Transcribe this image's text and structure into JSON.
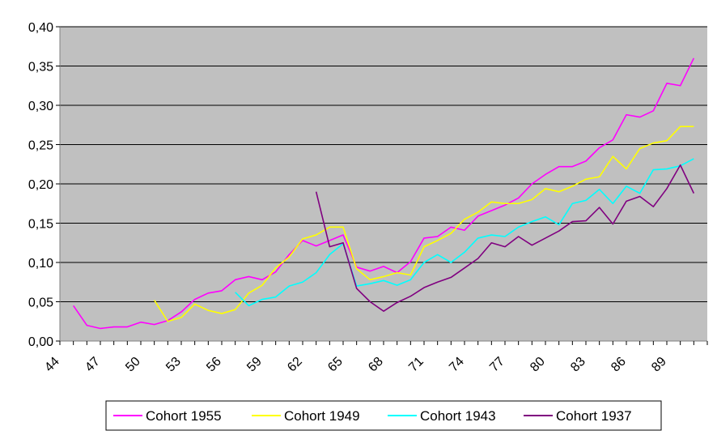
{
  "chart_data": {
    "type": "line",
    "title": "",
    "xlabel": "",
    "ylabel": "",
    "x": [
      45,
      46,
      47,
      48,
      49,
      50,
      51,
      52,
      53,
      54,
      55,
      56,
      57,
      58,
      59,
      60,
      61,
      62,
      63,
      64,
      65,
      66,
      67,
      68,
      69,
      70,
      71,
      72,
      73,
      74,
      75,
      76,
      77,
      78,
      79,
      80,
      81,
      82,
      83,
      84,
      85,
      86,
      87,
      88,
      89,
      90,
      91
    ],
    "xlim": [
      44,
      92
    ],
    "x_tick_labels": [
      "44",
      "47",
      "50",
      "53",
      "56",
      "59",
      "62",
      "65",
      "68",
      "71",
      "74",
      "77",
      "80",
      "83",
      "86",
      "89"
    ],
    "x_tick_values": [
      44,
      47,
      50,
      53,
      56,
      59,
      62,
      65,
      68,
      71,
      74,
      77,
      80,
      83,
      86,
      89
    ],
    "ylim": [
      0,
      0.4
    ],
    "y_tick_labels": [
      "0,00",
      "0,05",
      "0,10",
      "0,15",
      "0,20",
      "0,25",
      "0,30",
      "0,35",
      "0,40"
    ],
    "y_tick_values": [
      0,
      0.05,
      0.1,
      0.15,
      0.2,
      0.25,
      0.3,
      0.35,
      0.4
    ],
    "grid": "horizontal",
    "legend_position": "bottom",
    "plot_background": "#c0c0c0",
    "series": [
      {
        "name": "Cohort 1955",
        "color": "#ff00ff",
        "values": [
          0.045,
          0.02,
          0.016,
          0.018,
          0.018,
          0.024,
          0.021,
          0.026,
          0.037,
          0.053,
          0.061,
          0.064,
          0.078,
          0.082,
          0.078,
          0.088,
          0.11,
          0.128,
          0.121,
          0.128,
          0.135,
          0.094,
          0.089,
          0.095,
          0.087,
          0.101,
          0.131,
          0.133,
          0.145,
          0.141,
          0.159,
          0.166,
          0.173,
          0.182,
          0.2,
          0.212,
          0.222,
          0.222,
          0.229,
          0.246,
          0.256,
          0.288,
          0.285,
          0.293,
          0.328,
          0.325,
          0.36
        ]
      },
      {
        "name": "Cohort 1949",
        "color": "#ffff00",
        "values": [
          null,
          null,
          null,
          null,
          null,
          null,
          0.052,
          0.025,
          0.03,
          0.047,
          0.039,
          0.035,
          0.04,
          0.061,
          0.071,
          0.093,
          0.107,
          0.13,
          0.135,
          0.145,
          0.145,
          0.092,
          0.078,
          0.082,
          0.087,
          0.084,
          0.12,
          0.128,
          0.137,
          0.155,
          0.164,
          0.177,
          0.175,
          0.175,
          0.18,
          0.194,
          0.19,
          0.197,
          0.206,
          0.209,
          0.235,
          0.219,
          0.245,
          0.252,
          0.255,
          0.273,
          0.273
        ]
      },
      {
        "name": "Cohort 1943",
        "color": "#00ffff",
        "values": [
          null,
          null,
          null,
          null,
          null,
          null,
          null,
          null,
          null,
          null,
          null,
          null,
          0.062,
          0.045,
          0.053,
          0.056,
          0.07,
          0.075,
          0.087,
          0.11,
          0.124,
          0.07,
          0.073,
          0.077,
          0.071,
          0.078,
          0.1,
          0.11,
          0.1,
          0.113,
          0.131,
          0.135,
          0.133,
          0.145,
          0.152,
          0.158,
          0.148,
          0.175,
          0.179,
          0.193,
          0.175,
          0.197,
          0.188,
          0.218,
          0.219,
          0.223,
          0.232
        ]
      },
      {
        "name": "Cohort 1937",
        "color": "#800080",
        "values": [
          null,
          null,
          null,
          null,
          null,
          null,
          null,
          null,
          null,
          null,
          null,
          null,
          null,
          null,
          null,
          null,
          null,
          null,
          0.19,
          0.12,
          0.125,
          0.067,
          0.05,
          0.038,
          0.049,
          0.057,
          0.068,
          0.075,
          0.081,
          0.093,
          0.105,
          0.125,
          0.12,
          0.133,
          0.122,
          0.131,
          0.14,
          0.152,
          0.153,
          0.17,
          0.149,
          0.178,
          0.184,
          0.171,
          0.194,
          0.224,
          0.188
        ]
      }
    ]
  }
}
